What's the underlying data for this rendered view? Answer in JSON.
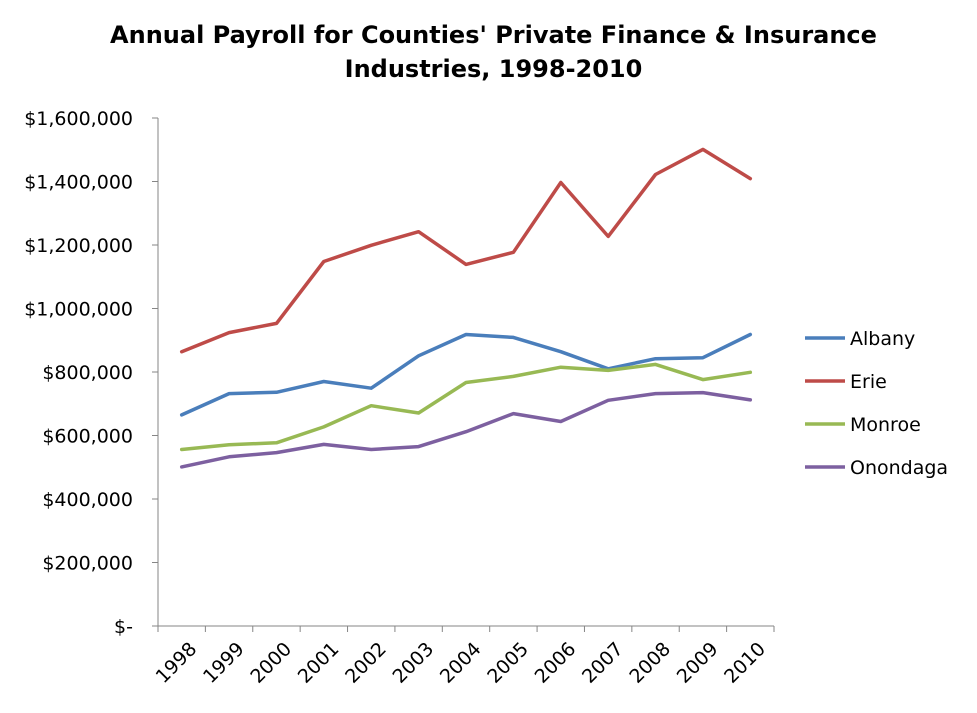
{
  "chart_data": {
    "type": "line",
    "title_lines": [
      "Annual Payroll for Counties' Private Finance & Insurance",
      "Industries, 1998-2010"
    ],
    "categories": [
      "1998",
      "1999",
      "2000",
      "2001",
      "2002",
      "2003",
      "2004",
      "2005",
      "2006",
      "2007",
      "2008",
      "2009",
      "2010"
    ],
    "ylim": [
      0,
      1600000
    ],
    "yticks": [
      0,
      200000,
      400000,
      600000,
      800000,
      1000000,
      1200000,
      1400000,
      1600000
    ],
    "ytick_labels": [
      "$-",
      "$200,000",
      "$400,000",
      "$600,000",
      "$800,000",
      "$1,000,000",
      "$1,200,000",
      "$1,400,000",
      "$1,600,000"
    ],
    "grid": false,
    "legend_position": "right",
    "series": [
      {
        "name": "Albany",
        "color": "#4a7ebb",
        "values": [
          665000,
          732000,
          736000,
          770000,
          749000,
          851000,
          918000,
          909000,
          864000,
          810000,
          842000,
          845000,
          918000
        ]
      },
      {
        "name": "Erie",
        "color": "#be4b48",
        "values": [
          864000,
          924000,
          953000,
          1148000,
          1199000,
          1242000,
          1139000,
          1177000,
          1397000,
          1227000,
          1422000,
          1501000,
          1409000
        ]
      },
      {
        "name": "Monroe",
        "color": "#98b954",
        "values": [
          556000,
          571000,
          577000,
          627000,
          694000,
          671000,
          767000,
          786000,
          815000,
          805000,
          824000,
          776000,
          799000
        ]
      },
      {
        "name": "Onondaga",
        "color": "#7d60a0",
        "values": [
          501000,
          533000,
          546000,
          572000,
          556000,
          565000,
          612000,
          669000,
          644000,
          711000,
          732000,
          735000,
          712000
        ]
      }
    ]
  }
}
